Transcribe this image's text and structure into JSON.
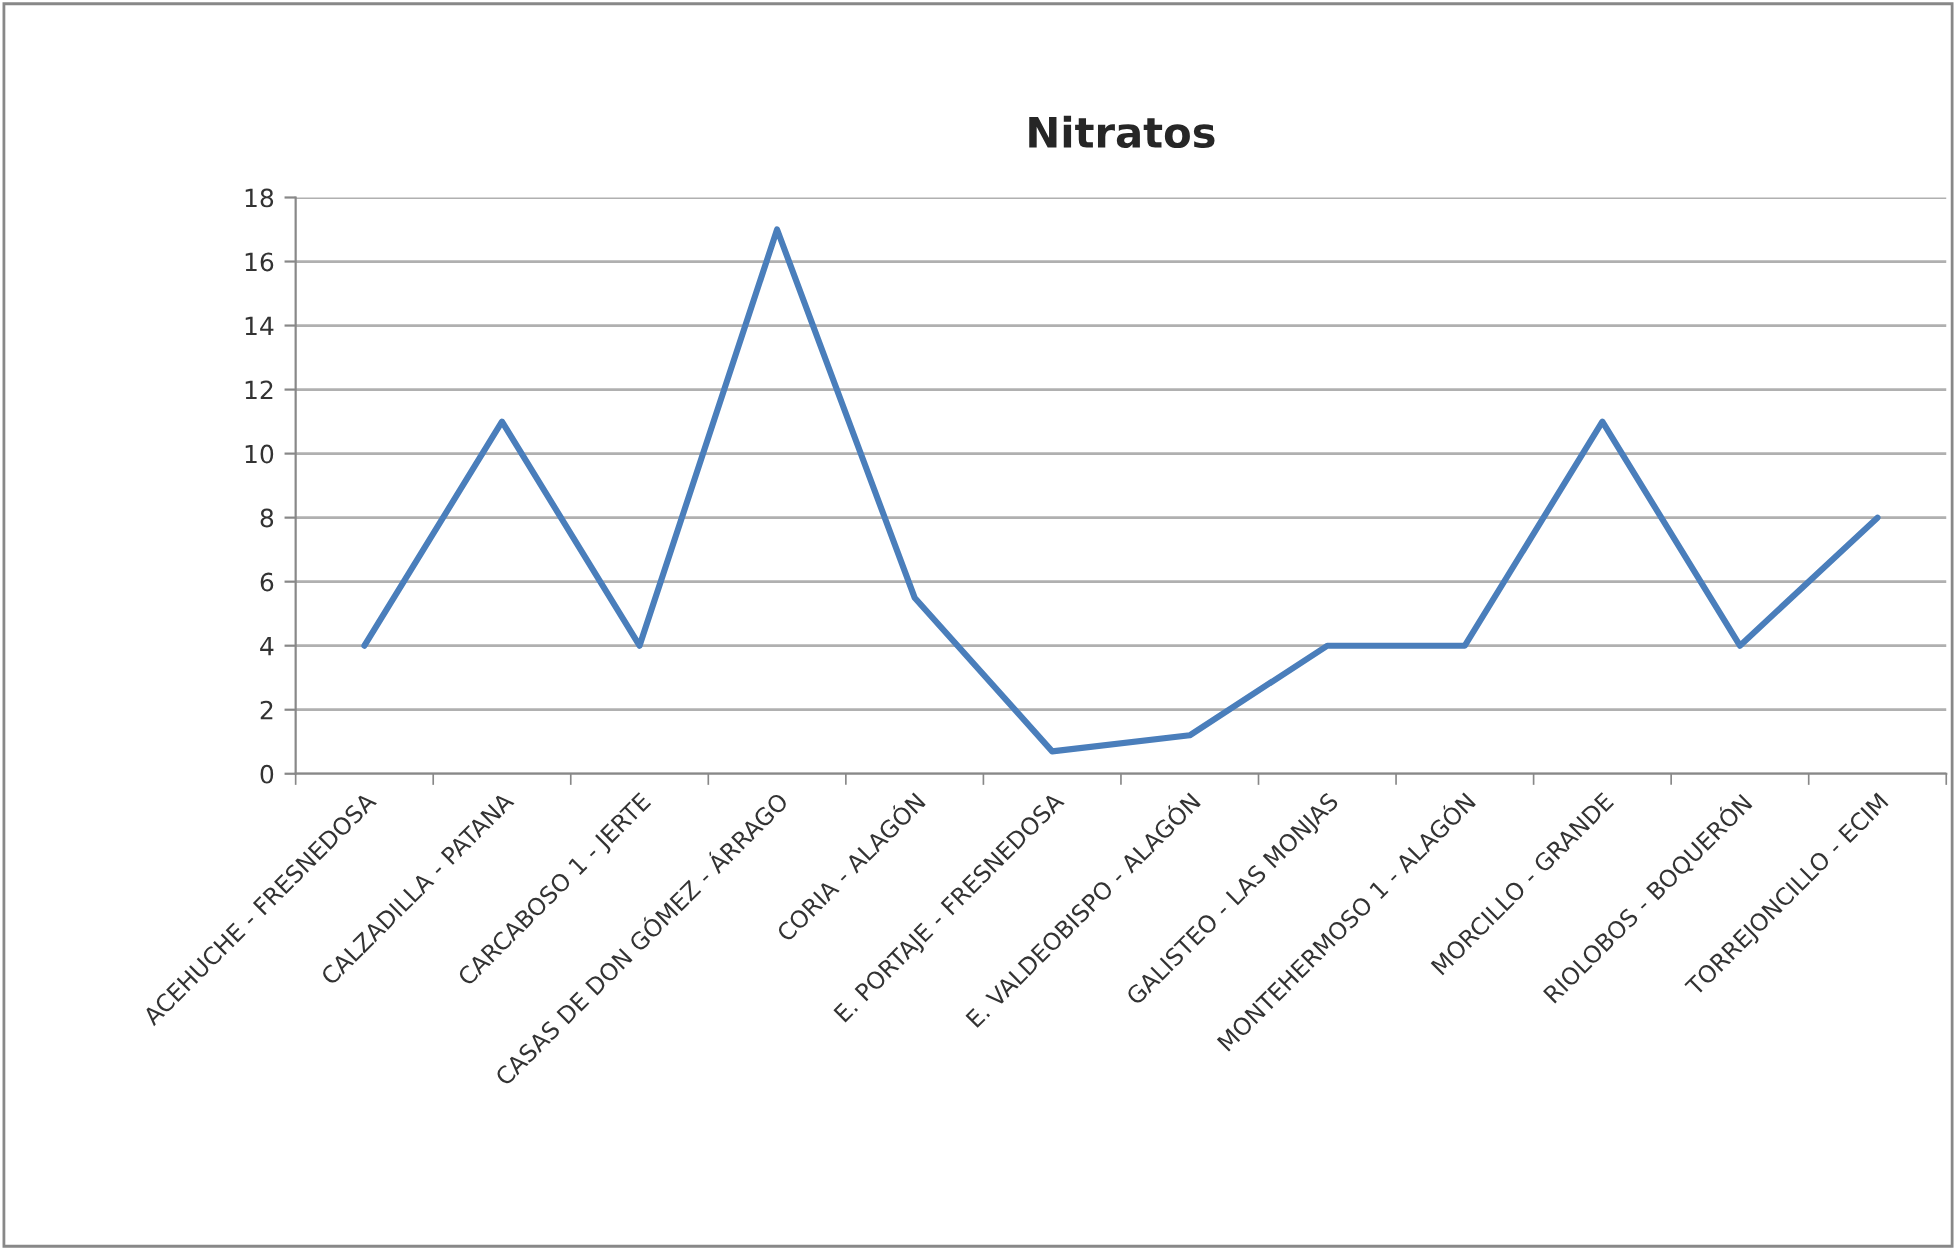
{
  "chart_data": {
    "type": "line",
    "title": "Nitratos",
    "categories": [
      "ACEHUCHE - FRESNEDOSA",
      "CALZADILLA - PATANA",
      "CARCABOSO 1 - JERTE",
      "CASAS DE DON GÓMEZ - ÁRRAGO",
      "CORIA - ALAGÓN",
      "E. PORTAJE - FRESNEDOSA",
      "E. VALDEOBISPO - ALAGÓN",
      "GALISTEO - LAS MONJAS",
      "MONTEHERMOSO 1 - ALAGÓN",
      "MORCILLO - GRANDE",
      "RIOLOBOS - BOQUERÓN",
      "TORREJONCILLO - ECIM"
    ],
    "series": [
      {
        "color": "#4a7ebb",
        "values": [
          4,
          11,
          4,
          17,
          5.5,
          0.7,
          1.2,
          4,
          4,
          11,
          4,
          8
        ]
      }
    ],
    "ylim": [
      0,
      18
    ],
    "yticks": [
      0,
      2,
      4,
      6,
      8,
      10,
      12,
      14,
      16,
      18
    ],
    "grid": "y",
    "marker": "none",
    "line_style": "solid"
  }
}
